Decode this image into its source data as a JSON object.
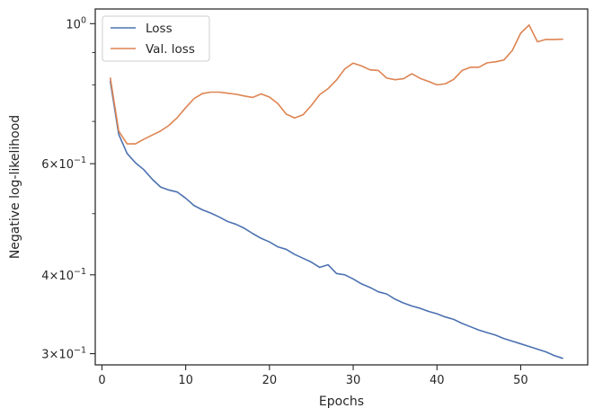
{
  "chart_data": {
    "type": "line",
    "xlabel": "Epochs",
    "ylabel": "Negative log-likelihood",
    "xlim": [
      -0.8,
      58
    ],
    "ylim": [
      0.288,
      1.055
    ],
    "yscale": "log",
    "grid": false,
    "legend_position": "top-left",
    "x_ticks": [
      0,
      10,
      20,
      30,
      40,
      50
    ],
    "x_tick_labels": [
      "0",
      "10",
      "20",
      "30",
      "40",
      "50"
    ],
    "y_major_ticks": [
      {
        "value": 0.3,
        "mantissa": "3",
        "exp": "−1"
      },
      {
        "value": 0.4,
        "mantissa": "4",
        "exp": "−1"
      },
      {
        "value": 0.6,
        "mantissa": "6",
        "exp": "−1"
      },
      {
        "value": 1.0,
        "mantissa": "10",
        "exp": "0"
      }
    ],
    "y_minor_ticks": [
      0.5,
      0.7,
      0.8,
      0.9
    ],
    "x": [
      1,
      2,
      3,
      4,
      5,
      6,
      7,
      8,
      9,
      10,
      11,
      12,
      13,
      14,
      15,
      16,
      17,
      18,
      19,
      20,
      21,
      22,
      23,
      24,
      25,
      26,
      27,
      28,
      29,
      30,
      31,
      32,
      33,
      34,
      35,
      36,
      37,
      38,
      39,
      40,
      41,
      42,
      43,
      44,
      45,
      46,
      47,
      48,
      49,
      50,
      51,
      52,
      53,
      54,
      55
    ],
    "series": [
      {
        "name": "Loss",
        "color": "#4c72b0",
        "values": [
          0.81,
          0.668,
          0.623,
          0.602,
          0.587,
          0.567,
          0.551,
          0.545,
          0.541,
          0.529,
          0.515,
          0.507,
          0.501,
          0.494,
          0.486,
          0.481,
          0.474,
          0.465,
          0.457,
          0.451,
          0.443,
          0.439,
          0.431,
          0.425,
          0.419,
          0.411,
          0.415,
          0.402,
          0.4,
          0.394,
          0.387,
          0.382,
          0.376,
          0.373,
          0.366,
          0.361,
          0.357,
          0.354,
          0.35,
          0.347,
          0.343,
          0.34,
          0.335,
          0.331,
          0.327,
          0.324,
          0.321,
          0.317,
          0.314,
          0.311,
          0.308,
          0.305,
          0.302,
          0.298,
          0.295
        ]
      },
      {
        "name": "Val. loss",
        "color": "#dd8452",
        "values": [
          0.82,
          0.676,
          0.645,
          0.645,
          0.656,
          0.666,
          0.676,
          0.69,
          0.71,
          0.736,
          0.761,
          0.775,
          0.779,
          0.779,
          0.776,
          0.773,
          0.768,
          0.764,
          0.774,
          0.765,
          0.747,
          0.719,
          0.709,
          0.717,
          0.742,
          0.772,
          0.789,
          0.814,
          0.848,
          0.866,
          0.857,
          0.845,
          0.843,
          0.82,
          0.815,
          0.818,
          0.833,
          0.819,
          0.81,
          0.8,
          0.803,
          0.816,
          0.843,
          0.853,
          0.853,
          0.867,
          0.87,
          0.876,
          0.907,
          0.966,
          0.995,
          0.936,
          0.944,
          0.944,
          0.945
        ]
      }
    ]
  }
}
